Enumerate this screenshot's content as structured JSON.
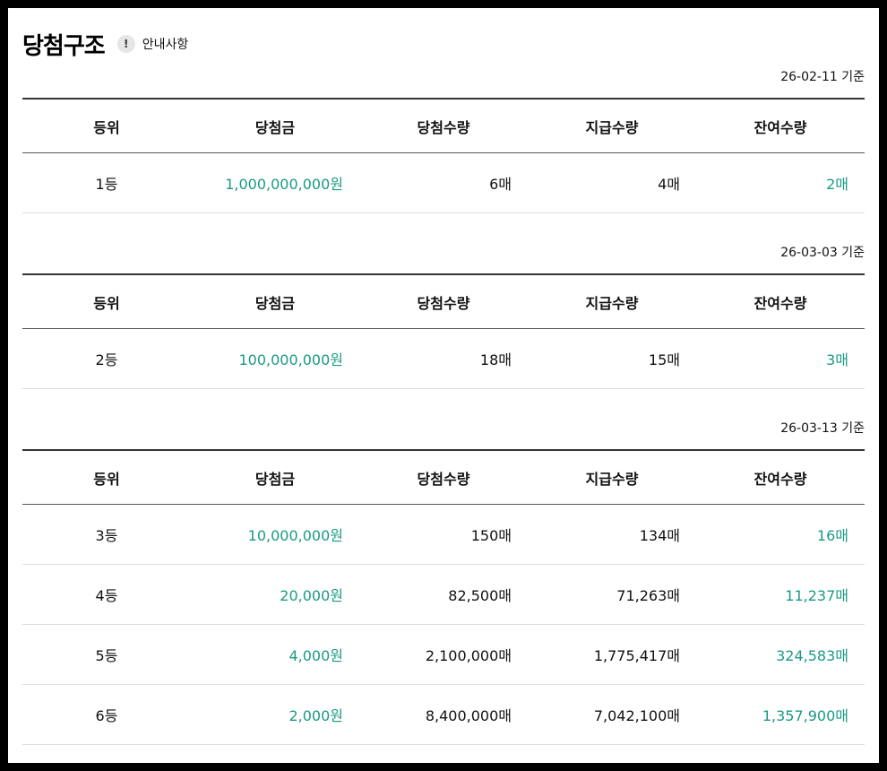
{
  "header": {
    "title": "당첨구조",
    "notice_icon_symbol": "!",
    "notice_label": "안내사항"
  },
  "columns": [
    "등위",
    "당첨금",
    "당첨수량",
    "지급수량",
    "잔여수량"
  ],
  "colors": {
    "highlight": "#1a9a85"
  },
  "sections": [
    {
      "as_of": "26-02-11 기준",
      "rows": [
        {
          "rank": "1등",
          "prize": "1,000,000,000원",
          "winners": "6매",
          "paid": "4매",
          "remaining": "2매"
        }
      ]
    },
    {
      "as_of": "26-03-03 기준",
      "rows": [
        {
          "rank": "2등",
          "prize": "100,000,000원",
          "winners": "18매",
          "paid": "15매",
          "remaining": "3매"
        }
      ]
    },
    {
      "as_of": "26-03-13 기준",
      "rows": [
        {
          "rank": "3등",
          "prize": "10,000,000원",
          "winners": "150매",
          "paid": "134매",
          "remaining": "16매"
        },
        {
          "rank": "4등",
          "prize": "20,000원",
          "winners": "82,500매",
          "paid": "71,263매",
          "remaining": "11,237매"
        },
        {
          "rank": "5등",
          "prize": "4,000원",
          "winners": "2,100,000매",
          "paid": "1,775,417매",
          "remaining": "324,583매"
        },
        {
          "rank": "6등",
          "prize": "2,000원",
          "winners": "8,400,000매",
          "paid": "7,042,100매",
          "remaining": "1,357,900매"
        }
      ]
    }
  ]
}
